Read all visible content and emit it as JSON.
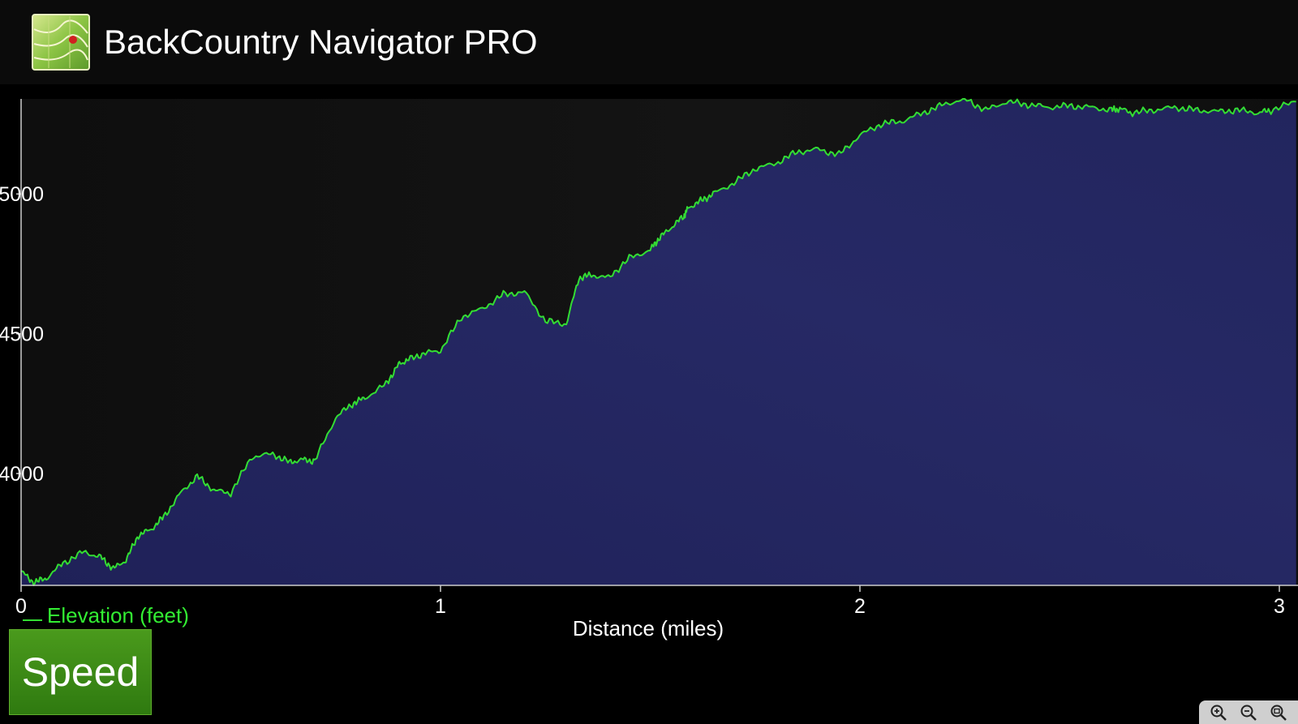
{
  "app": {
    "title": "BackCountry Navigator PRO",
    "icon": "map-app-icon"
  },
  "buttons": {
    "speed_label": "Speed"
  },
  "zoom_controls": {
    "icons": [
      "zoom-in-icon",
      "zoom-out-icon",
      "zoom-fit-icon"
    ]
  },
  "colors": {
    "line": "#33dd33",
    "fill": "#252660",
    "background": "#121212",
    "legend": "#33ee33",
    "speed_button": "#3b8a16"
  },
  "chart_data": {
    "type": "area",
    "title": "",
    "xlabel": "Distance (miles)",
    "ylabel": "",
    "xlim": [
      0,
      3
    ],
    "ylim": [
      3600,
      5340
    ],
    "x_ticks": [
      0,
      1,
      2,
      3
    ],
    "x_tick_labels": [
      "0",
      "1",
      "2",
      "3"
    ],
    "y_ticks": [
      4000,
      4500,
      5000
    ],
    "y_tick_labels": [
      "4000",
      "4500",
      "5000"
    ],
    "grid": false,
    "legend_position": "bottom-left",
    "series": [
      {
        "name": "Elevation (feet)",
        "x": [
          0,
          0.03,
          0.06,
          0.1,
          0.15,
          0.19,
          0.22,
          0.25,
          0.28,
          0.31,
          0.34,
          0.38,
          0.42,
          0.46,
          0.5,
          0.55,
          0.6,
          0.64,
          0.67,
          0.7,
          0.75,
          0.79,
          0.82,
          0.87,
          0.9,
          0.92,
          0.96,
          1.0,
          1.05,
          1.1,
          1.15,
          1.2,
          1.25,
          1.3,
          1.33,
          1.36,
          1.4,
          1.45,
          1.5,
          1.52,
          1.55,
          1.58,
          1.59,
          1.62,
          1.65,
          1.7,
          1.75,
          1.8,
          1.85,
          1.9,
          1.95,
          2.0,
          2.05,
          2.1,
          2.15,
          2.2,
          2.25,
          2.3,
          2.35,
          2.4,
          2.45,
          2.5,
          2.55,
          2.6,
          2.62,
          2.65,
          2.7,
          2.75,
          2.8,
          2.85,
          2.9,
          2.95,
          2.98,
          3.04
        ],
        "y": [
          3650,
          3610,
          3625,
          3680,
          3720,
          3700,
          3660,
          3690,
          3780,
          3800,
          3845,
          3930,
          3990,
          3940,
          3930,
          4060,
          4070,
          4040,
          4050,
          4045,
          4200,
          4250,
          4270,
          4320,
          4390,
          4405,
          4430,
          4440,
          4560,
          4590,
          4640,
          4650,
          4545,
          4535,
          4700,
          4710,
          4700,
          4770,
          4800,
          4840,
          4880,
          4920,
          4950,
          4975,
          5000,
          5040,
          5090,
          5110,
          5150,
          5160,
          5140,
          5210,
          5250,
          5260,
          5290,
          5320,
          5340,
          5300,
          5330,
          5320,
          5310,
          5315,
          5310,
          5300,
          5305,
          5290,
          5300,
          5310,
          5300,
          5295,
          5300,
          5290,
          5300,
          5330
        ]
      }
    ]
  }
}
